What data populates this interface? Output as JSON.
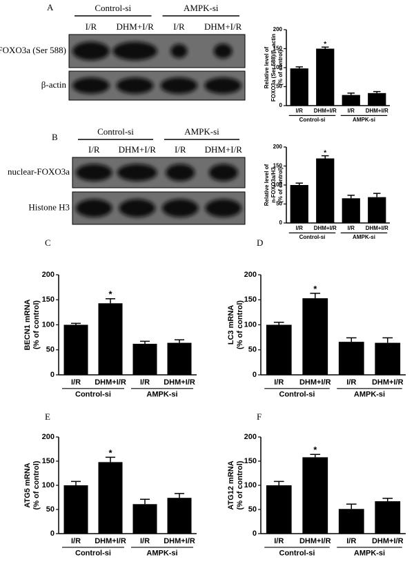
{
  "chart_data": [
    {
      "type": "bar",
      "label": "A",
      "ylabel": [
        "Relative level of",
        "FOXO3a (Ser 588)/β -actin",
        "(% of control)"
      ],
      "categories": [
        "I/R",
        "DHM+I/R",
        "I/R",
        "DHM+I/R"
      ],
      "group_labels": [
        "Control-si",
        "AMPK-si"
      ],
      "values": [
        98,
        150,
        28,
        33
      ],
      "errors": [
        4,
        4,
        5,
        4
      ],
      "annotations": [
        null,
        "*",
        null,
        null
      ],
      "color": "#000000",
      "ylim": [
        0,
        200
      ],
      "yticks": [
        0,
        50,
        100,
        150,
        200
      ]
    },
    {
      "type": "bar",
      "label": "B",
      "ylabel": [
        "Relative level of",
        "n-FOXO3a/H3",
        "(% of control)"
      ],
      "categories": [
        "I/R",
        "DHM+I/R",
        "I/R",
        "DHM+I/R"
      ],
      "group_labels": [
        "Control-si",
        "AMPK-si"
      ],
      "values": [
        100,
        170,
        65,
        68
      ],
      "errors": [
        5,
        7,
        8,
        10
      ],
      "annotations": [
        null,
        "*",
        null,
        null
      ],
      "color": "#000000",
      "ylim": [
        0,
        200
      ],
      "yticks": [
        0,
        50,
        100,
        150,
        200
      ]
    },
    {
      "type": "bar",
      "label": "C",
      "ylabel": [
        "BECN1 mRNA",
        "(% of control)"
      ],
      "categories": [
        "I/R",
        "DHM+I/R",
        "I/R",
        "DHM+I/R"
      ],
      "group_labels": [
        "Control-si",
        "AMPK-si"
      ],
      "values": [
        100,
        143,
        62,
        64
      ],
      "errors": [
        3,
        9,
        5,
        6
      ],
      "annotations": [
        null,
        "*",
        null,
        null
      ],
      "color": "#000000",
      "ylim": [
        0,
        200
      ],
      "yticks": [
        0,
        50,
        100,
        150,
        200
      ]
    },
    {
      "type": "bar",
      "label": "D",
      "ylabel": [
        "LC3 mRNA",
        "(% of control)"
      ],
      "categories": [
        "I/R",
        "DHM+I/R",
        "I/R",
        "DHM+I/R"
      ],
      "group_labels": [
        "Control-si",
        "AMPK-si"
      ],
      "values": [
        100,
        153,
        66,
        64
      ],
      "errors": [
        5,
        10,
        8,
        10
      ],
      "annotations": [
        null,
        "*",
        null,
        null
      ],
      "color": "#000000",
      "ylim": [
        0,
        200
      ],
      "yticks": [
        0,
        50,
        100,
        150,
        200
      ]
    },
    {
      "type": "bar",
      "label": "E",
      "ylabel": [
        "ATG5 mRNA",
        "(% of control)"
      ],
      "categories": [
        "I/R",
        "DHM+I/R",
        "I/R",
        "DHM+I/R"
      ],
      "group_labels": [
        "Control-si",
        "AMPK-si"
      ],
      "values": [
        100,
        148,
        61,
        74
      ],
      "errors": [
        8,
        10,
        10,
        9
      ],
      "annotations": [
        null,
        "*",
        null,
        null
      ],
      "color": "#000000",
      "ylim": [
        0,
        200
      ],
      "yticks": [
        0,
        50,
        100,
        150,
        200
      ]
    },
    {
      "type": "bar",
      "label": "F",
      "ylabel": [
        "ATG12 mRNA",
        "(% of control)"
      ],
      "categories": [
        "I/R",
        "DHM+I/R",
        "I/R",
        "DHM+I/R"
      ],
      "group_labels": [
        "Control-si",
        "AMPK-si"
      ],
      "values": [
        100,
        158,
        51,
        67
      ],
      "errors": [
        8,
        6,
        10,
        6
      ],
      "annotations": [
        null,
        "*",
        null,
        null
      ],
      "color": "#000000",
      "ylim": [
        0,
        200
      ],
      "yticks": [
        0,
        50,
        100,
        150,
        200
      ]
    }
  ],
  "blots": [
    {
      "group_labels": [
        "Control-si",
        "AMPK-si"
      ],
      "lanes": [
        "I/R",
        "DHM+I/R",
        "I/R",
        "DHM+I/R"
      ],
      "rows": [
        "FOXO3a (Ser 588)",
        "β-actin"
      ]
    },
    {
      "group_labels": [
        "Control-si",
        "AMPK-si"
      ],
      "lanes": [
        "I/R",
        "DHM+I/R",
        "I/R",
        "DHM+I/R"
      ],
      "rows": [
        "nuclear-FOXO3a",
        "Histone H3"
      ]
    }
  ]
}
